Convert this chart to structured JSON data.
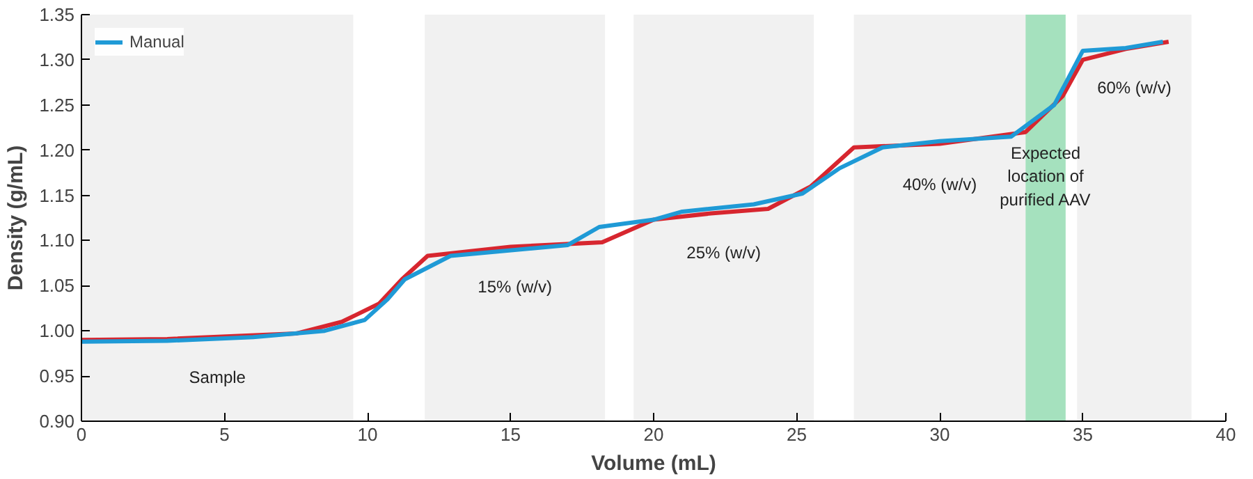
{
  "chart_data": {
    "type": "line",
    "xlabel": "Volume (mL)",
    "ylabel": "Density (g/mL)",
    "xlim": [
      0,
      40
    ],
    "xticks": [
      0,
      5,
      10,
      15,
      20,
      25,
      30,
      35,
      40
    ],
    "ylim": [
      0.9,
      1.35
    ],
    "yticks": [
      {
        "value": 0.9,
        "label": "0.90"
      },
      {
        "value": 0.95,
        "label": "0.95"
      },
      {
        "value": 1.0,
        "label": "1.00"
      },
      {
        "value": 1.05,
        "label": "1.05"
      },
      {
        "value": 1.1,
        "label": "1.10"
      },
      {
        "value": 1.15,
        "label": "1.15"
      },
      {
        "value": 1.2,
        "label": "1.20"
      },
      {
        "value": 1.25,
        "label": "1.25"
      },
      {
        "value": 1.3,
        "label": "1.30"
      },
      {
        "value": 1.35,
        "label": "1.35"
      }
    ],
    "grid": false,
    "legend": "top left",
    "line_style": "solid",
    "marker": "none",
    "series": [
      {
        "color": "#d7262f",
        "x": [
          0,
          3,
          7.5,
          9.1,
          10.4,
          11.2,
          12.1,
          15,
          18.2,
          20,
          22,
          24,
          25.5,
          27,
          30,
          33,
          34.3,
          35,
          36.5,
          38
        ],
        "values": [
          0.99,
          0.991,
          0.997,
          1.01,
          1.03,
          1.057,
          1.083,
          1.093,
          1.098,
          1.123,
          1.13,
          1.135,
          1.16,
          1.203,
          1.207,
          1.22,
          1.26,
          1.3,
          1.312,
          1.32
        ]
      },
      {
        "name": "Manual",
        "color": "#1f9ad6",
        "x": [
          0,
          3,
          6,
          8.5,
          9.9,
          10.7,
          11.3,
          12.9,
          17,
          18.1,
          20,
          21,
          23.5,
          25.2,
          26.5,
          28,
          30,
          32.5,
          34,
          35,
          36.5,
          37.8
        ],
        "values": [
          0.988,
          0.989,
          0.993,
          1.0,
          1.012,
          1.035,
          1.057,
          1.083,
          1.095,
          1.115,
          1.123,
          1.132,
          1.14,
          1.152,
          1.18,
          1.203,
          1.21,
          1.215,
          1.25,
          1.31,
          1.313,
          1.32
        ]
      }
    ],
    "bands": [
      {
        "axis": "x",
        "from": 0,
        "to": 9.5,
        "label": "Sample",
        "color": "#eeeeee"
      },
      {
        "axis": "x",
        "from": 12,
        "to": 18.3,
        "label": "15% (w/v)",
        "color": "#eeeeee"
      },
      {
        "axis": "x",
        "from": 19.3,
        "to": 25.6,
        "label": "25% (w/v)",
        "color": "#eeeeee"
      },
      {
        "axis": "x",
        "from": 27,
        "to": 33,
        "label": "40% (w/v)",
        "color": "#eeeeee"
      },
      {
        "axis": "x",
        "from": 33,
        "to": 34.4,
        "label": "Expected\nlocation of\npurified AAV",
        "color": "#8fd9ae"
      },
      {
        "axis": "x",
        "from": 34.8,
        "to": 38.8,
        "label": "60% (w/v)",
        "color": "#eeeeee"
      }
    ]
  }
}
